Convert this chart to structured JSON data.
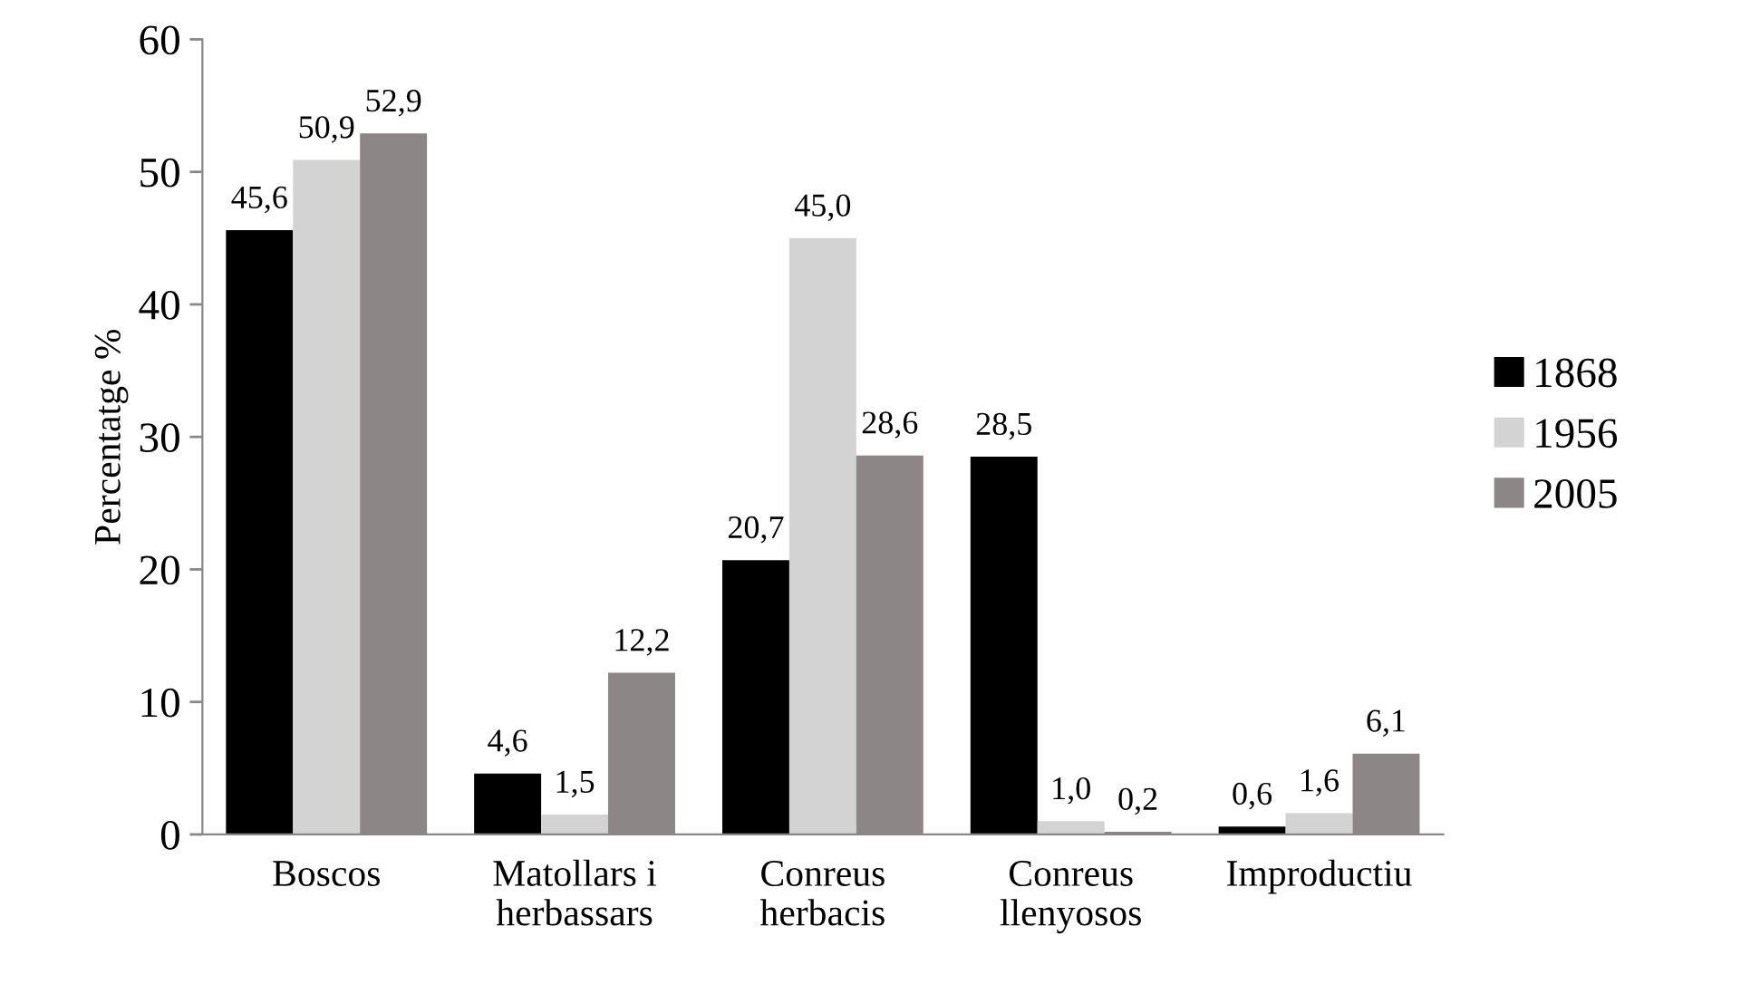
{
  "chart_data": {
    "type": "bar",
    "ylabel": "Percentatge %",
    "categories": [
      "Boscos",
      "Matollars i\nherbassars",
      "Conreus\nherbacis",
      "Conreus\nllenyosos",
      "Improductiu"
    ],
    "series": [
      {
        "name": "1868",
        "color": "#000000",
        "values": [
          45.6,
          4.6,
          20.7,
          28.5,
          0.6
        ],
        "value_labels": [
          "45,6",
          "4,6",
          "20,7",
          "28,5",
          "0,6"
        ]
      },
      {
        "name": "1956",
        "color": "#d3d3d3",
        "values": [
          50.9,
          1.5,
          45.0,
          1.0,
          1.6
        ],
        "value_labels": [
          "50,9",
          "1,5",
          "45,0",
          "1,0",
          "1,6"
        ]
      },
      {
        "name": "2005",
        "color": "#8c8686",
        "values": [
          52.9,
          12.2,
          28.6,
          0.2,
          6.1
        ],
        "value_labels": [
          "52,9",
          "12,2",
          "28,6",
          "0,2",
          "6,1"
        ]
      }
    ],
    "ylim": [
      0,
      60
    ],
    "yticks": [
      0,
      10,
      20,
      30,
      40,
      50,
      60
    ],
    "grid": false,
    "legend": "right"
  }
}
